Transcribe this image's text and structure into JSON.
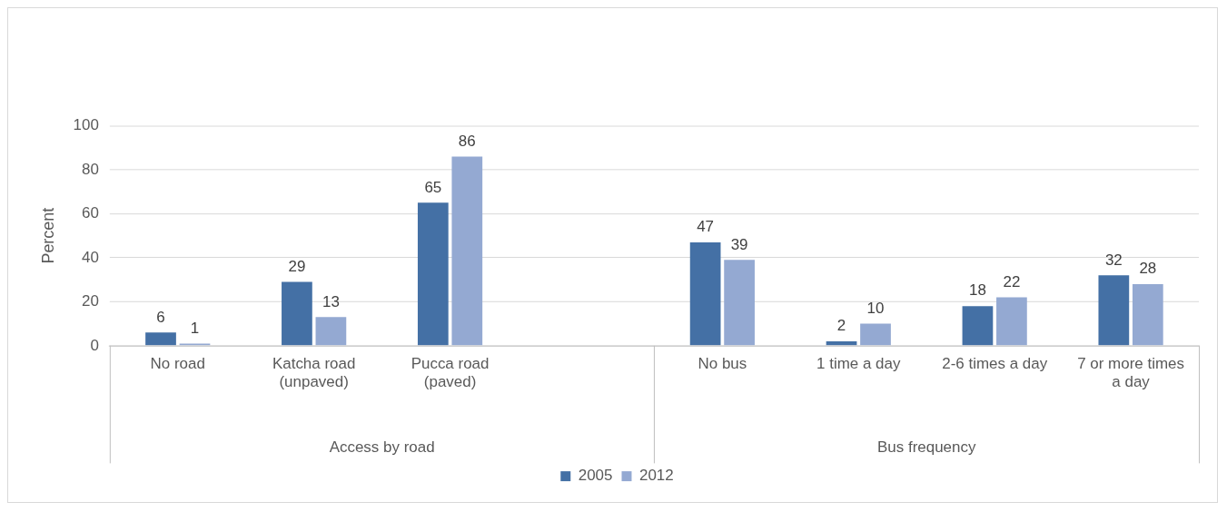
{
  "chart_data": {
    "type": "bar",
    "categories": [
      "No road",
      "Katcha road (unpaved)",
      "Pucca road (paved)",
      null,
      "No bus",
      "1 time a day",
      "2-6 times a day",
      "7 or more times a day"
    ],
    "series": [
      {
        "name": "2005",
        "color": "#4470a5",
        "values": [
          6,
          29,
          65,
          null,
          47,
          2,
          18,
          32
        ]
      },
      {
        "name": "2012",
        "color": "#94a9d2",
        "values": [
          1,
          13,
          86,
          null,
          39,
          10,
          22,
          28
        ]
      }
    ],
    "ylabel": "Percent",
    "ylim": [
      0,
      100
    ],
    "yticks": [
      0,
      20,
      40,
      60,
      80,
      100
    ],
    "grid": "y",
    "legend": "bottom",
    "data_labels": true,
    "annotations": [
      "Access by road",
      "Bus frequency"
    ]
  }
}
